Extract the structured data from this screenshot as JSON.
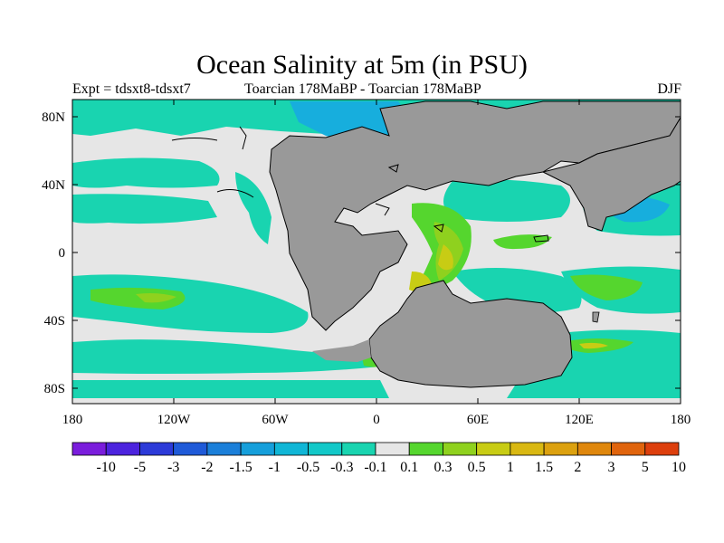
{
  "title": "Ocean Salinity at 5m (in PSU)",
  "subtitle_left": "Expt = tdsxt8-tdsxt7",
  "subtitle_center": "Toarcian 178MaBP - Toarcian 178MaBP",
  "subtitle_right": "DJF",
  "map": {
    "x_ticks": [
      "180",
      "120W",
      "60W",
      "0",
      "60E",
      "120E",
      "180"
    ],
    "y_ticks": [
      "80N",
      "40N",
      "0",
      "40S",
      "80S"
    ],
    "colors": {
      "land": "#999999",
      "ocean_neutral": "#e6e6e6",
      "neg_small": "#19d4b0",
      "neg_mid": "#12c8c8",
      "neg_large": "#17aedd",
      "pos_small": "#55d62e",
      "pos_mid": "#8fd11e",
      "pos_large": "#c8cc14"
    }
  },
  "colorbar": {
    "labels": [
      "-10",
      "-5",
      "-3",
      "-2",
      "-1.5",
      "-1",
      "-0.5",
      "-0.3",
      "-0.1",
      "0.1",
      "0.3",
      "0.5",
      "1",
      "1.5",
      "2",
      "3",
      "5",
      "10"
    ],
    "colors": [
      "#7a1ddc",
      "#4c23de",
      "#2c3ad8",
      "#1f5ad8",
      "#1b7fd9",
      "#169fdb",
      "#10b6d6",
      "#12c8c8",
      "#19d4b0",
      "#e6e6e6",
      "#55d62e",
      "#8fd11e",
      "#c8cc14",
      "#d9b812",
      "#dca10f",
      "#df870d",
      "#e0640d",
      "#dd3f0d"
    ]
  }
}
